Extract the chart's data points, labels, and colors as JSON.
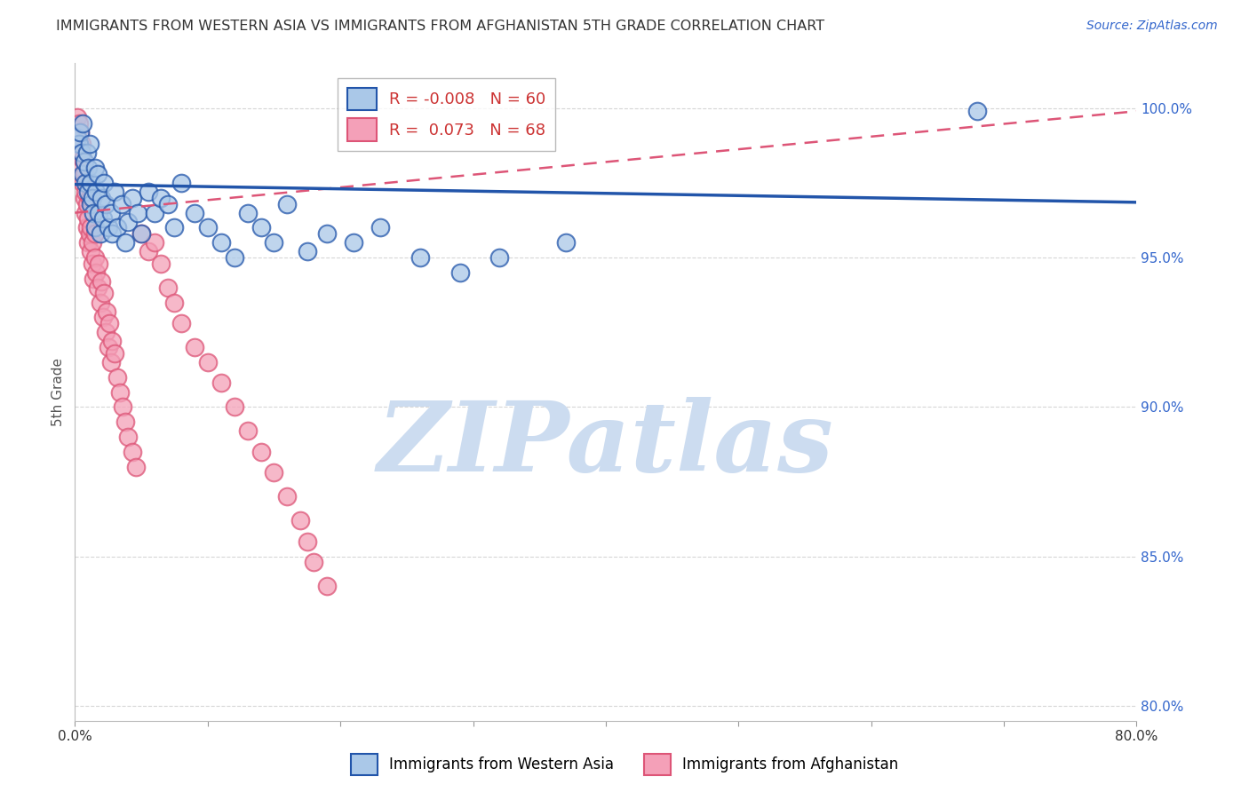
{
  "title": "IMMIGRANTS FROM WESTERN ASIA VS IMMIGRANTS FROM AFGHANISTAN 5TH GRADE CORRELATION CHART",
  "source": "Source: ZipAtlas.com",
  "ylabel_label": "5th Grade",
  "ytick_values": [
    1.0,
    0.95,
    0.9,
    0.85,
    0.8
  ],
  "xlim": [
    0.0,
    0.8
  ],
  "ylim": [
    0.795,
    1.015
  ],
  "legend_blue": "R = -0.008   N = 60",
  "legend_pink": "R =  0.073   N = 68",
  "blue_scatter_x": [
    0.002,
    0.003,
    0.004,
    0.005,
    0.006,
    0.006,
    0.007,
    0.008,
    0.009,
    0.01,
    0.01,
    0.011,
    0.012,
    0.012,
    0.013,
    0.014,
    0.015,
    0.015,
    0.016,
    0.017,
    0.018,
    0.019,
    0.02,
    0.021,
    0.022,
    0.023,
    0.025,
    0.027,
    0.028,
    0.03,
    0.032,
    0.035,
    0.038,
    0.04,
    0.043,
    0.047,
    0.05,
    0.055,
    0.06,
    0.065,
    0.07,
    0.075,
    0.08,
    0.09,
    0.1,
    0.11,
    0.12,
    0.13,
    0.14,
    0.15,
    0.16,
    0.175,
    0.19,
    0.21,
    0.23,
    0.26,
    0.29,
    0.32,
    0.37,
    0.68
  ],
  "blue_scatter_y": [
    0.99,
    0.988,
    0.992,
    0.985,
    0.978,
    0.995,
    0.982,
    0.975,
    0.985,
    0.98,
    0.972,
    0.988,
    0.968,
    0.975,
    0.97,
    0.965,
    0.98,
    0.96,
    0.972,
    0.978,
    0.965,
    0.958,
    0.97,
    0.963,
    0.975,
    0.968,
    0.96,
    0.965,
    0.958,
    0.972,
    0.96,
    0.968,
    0.955,
    0.962,
    0.97,
    0.965,
    0.958,
    0.972,
    0.965,
    0.97,
    0.968,
    0.96,
    0.975,
    0.965,
    0.96,
    0.955,
    0.95,
    0.965,
    0.96,
    0.955,
    0.968,
    0.952,
    0.958,
    0.955,
    0.96,
    0.95,
    0.945,
    0.95,
    0.955,
    0.999
  ],
  "pink_scatter_x": [
    0.001,
    0.002,
    0.002,
    0.003,
    0.003,
    0.004,
    0.004,
    0.005,
    0.005,
    0.006,
    0.006,
    0.007,
    0.007,
    0.008,
    0.008,
    0.009,
    0.009,
    0.01,
    0.01,
    0.011,
    0.011,
    0.012,
    0.012,
    0.013,
    0.013,
    0.014,
    0.015,
    0.015,
    0.016,
    0.017,
    0.018,
    0.019,
    0.02,
    0.021,
    0.022,
    0.023,
    0.024,
    0.025,
    0.026,
    0.027,
    0.028,
    0.03,
    0.032,
    0.034,
    0.036,
    0.038,
    0.04,
    0.043,
    0.046,
    0.05,
    0.055,
    0.06,
    0.065,
    0.07,
    0.075,
    0.08,
    0.09,
    0.1,
    0.11,
    0.12,
    0.13,
    0.14,
    0.15,
    0.16,
    0.17,
    0.175,
    0.18,
    0.19
  ],
  "pink_scatter_y": [
    0.993,
    0.99,
    0.997,
    0.988,
    0.995,
    0.985,
    0.992,
    0.98,
    0.988,
    0.975,
    0.983,
    0.97,
    0.978,
    0.965,
    0.972,
    0.96,
    0.968,
    0.955,
    0.963,
    0.97,
    0.958,
    0.952,
    0.96,
    0.948,
    0.955,
    0.943,
    0.95,
    0.958,
    0.945,
    0.94,
    0.948,
    0.935,
    0.942,
    0.93,
    0.938,
    0.925,
    0.932,
    0.92,
    0.928,
    0.915,
    0.922,
    0.918,
    0.91,
    0.905,
    0.9,
    0.895,
    0.89,
    0.885,
    0.88,
    0.958,
    0.952,
    0.955,
    0.948,
    0.94,
    0.935,
    0.928,
    0.92,
    0.915,
    0.908,
    0.9,
    0.892,
    0.885,
    0.878,
    0.87,
    0.862,
    0.855,
    0.848,
    0.84
  ],
  "blue_color": "#aac8e8",
  "pink_color": "#f4a0b8",
  "blue_line_color": "#2255aa",
  "pink_line_color": "#dd5577",
  "blue_trend_x": [
    0.0,
    0.8
  ],
  "blue_trend_y": [
    0.9745,
    0.9685
  ],
  "pink_trend_x": [
    0.0,
    0.8
  ],
  "pink_trend_y": [
    0.965,
    0.999
  ],
  "watermark_text": "ZIPatlas",
  "watermark_color": "#ccdcf0",
  "grid_color": "#cccccc",
  "title_fontsize": 11.5,
  "source_fontsize": 10,
  "tick_fontsize": 11
}
